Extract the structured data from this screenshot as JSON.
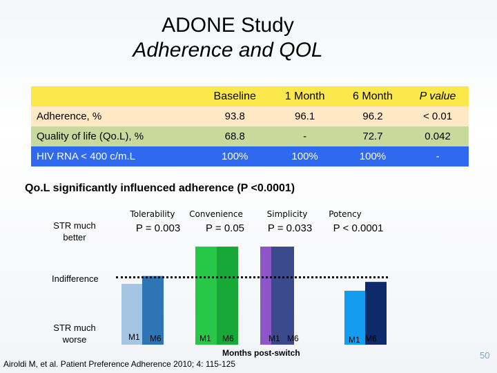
{
  "title": {
    "line1": "ADONE Study",
    "line2": "Adherence and QOL"
  },
  "table": {
    "headers": [
      "",
      "Baseline",
      "1 Month",
      "6 Month",
      "P value"
    ],
    "rows": [
      {
        "label": "Adherence, %",
        "cells": [
          "93.8",
          "96.1",
          "96.2",
          "< 0.01"
        ]
      },
      {
        "label": "Quality of life (Qo.L), %",
        "cells": [
          "68.8",
          "-",
          "72.7",
          "0.042"
        ]
      },
      {
        "label": "HIV RNA < 400 c/m.L",
        "cells": [
          "100%",
          "100%",
          "100%",
          "-"
        ]
      }
    ]
  },
  "subheading": "Qo.L significantly influenced adherence (P <0.0001)",
  "y_labels": {
    "top": "STR much better",
    "middle": "Indifference",
    "bottom": "STR much worse"
  },
  "chart_data": {
    "type": "bar",
    "x_title": "Months post-switch",
    "groups": [
      {
        "category": "Tolerability",
        "p_value": "P = 0.003",
        "bars": [
          {
            "label": "M1",
            "value": 0.62,
            "color": "#a6c5e2"
          },
          {
            "label": "M6",
            "value": 0.7,
            "color": "#2e75b6"
          }
        ]
      },
      {
        "category": "Convenience",
        "p_value": "P = 0.05",
        "bars": [
          {
            "label": "M1",
            "value": 1.0,
            "color": "#27c847"
          },
          {
            "label": "M6",
            "value": 1.0,
            "color": "#18a838"
          }
        ]
      },
      {
        "category": "Simplicity",
        "p_value": "P = 0.033",
        "bars": [
          {
            "label": "M1",
            "value": 1.0,
            "color": "#8d55c7"
          },
          {
            "label": "M6",
            "value": 1.0,
            "color": "#3a4a8c"
          }
        ]
      },
      {
        "category": "Potency",
        "p_value": "P < 0.0001",
        "bars": [
          {
            "label": "M1",
            "value": 0.55,
            "color": "#139df0"
          },
          {
            "label": "M6",
            "value": 0.64,
            "color": "#0d2a6b"
          }
        ]
      }
    ],
    "scale": {
      "min": 0,
      "max": 1,
      "indifference": 0.5
    }
  },
  "citation": "Airoldi M, et al. Patient Preference Adherence 2010; 4: 115-125",
  "page_number": "50"
}
